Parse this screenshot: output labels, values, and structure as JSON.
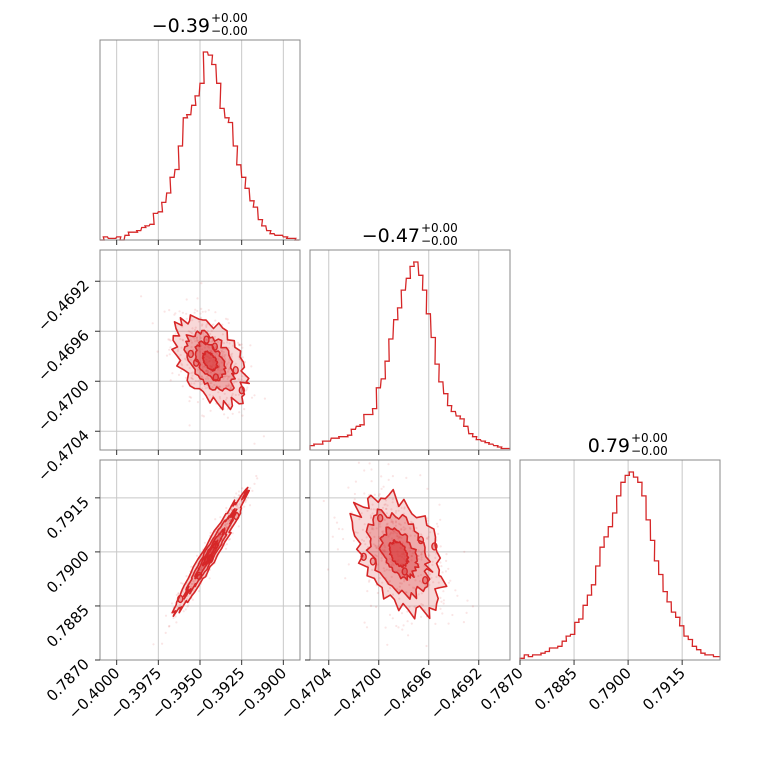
{
  "chart_data": {
    "type": "corner",
    "color": "#d62728",
    "fill_color": "#d62728",
    "parameters": [
      {
        "id": "p1",
        "label": "",
        "title": "−0.39",
        "upper": "+0.00",
        "lower": "−0.00",
        "range": [
          -0.401,
          -0.389
        ],
        "ticks": [
          -0.4,
          -0.3975,
          -0.395,
          -0.3925,
          -0.39
        ],
        "tick_labels": [
          "−0.4000",
          "−0.3975",
          "−0.3950",
          "−0.3925",
          "−0.3900"
        ],
        "mean": -0.3944,
        "std": 0.00095
      },
      {
        "id": "p2",
        "label": "",
        "title": "−0.47",
        "upper": "+0.00",
        "lower": "−0.00",
        "range": [
          -0.47055,
          -0.46895
        ],
        "ticks": [
          -0.4704,
          -0.47,
          -0.4696,
          -0.4692
        ],
        "tick_labels": [
          "−0.4704",
          "−0.4700",
          "−0.4696",
          "−0.4692"
        ],
        "mean": -0.46984,
        "std": 0.00016
      },
      {
        "id": "p3",
        "label": "",
        "title": "0.79",
        "upper": "+0.00",
        "lower": "−0.00",
        "range": [
          0.787,
          0.79255
        ],
        "ticks": [
          0.787,
          0.7885,
          0.79,
          0.7915
        ],
        "tick_labels": [
          "0.7870",
          "0.7885",
          "0.7900",
          "0.7915"
        ],
        "mean": 0.78995,
        "std": 0.00075
      }
    ],
    "correlations": [
      [
        1,
        -0.45,
        0.97
      ],
      [
        -0.45,
        1,
        -0.4
      ],
      [
        0.97,
        -0.4,
        1
      ]
    ],
    "histograms": {
      "p1": {
        "x": [
          -0.401,
          -0.4008,
          -0.4005,
          -0.4003,
          -0.4,
          -0.3998,
          -0.3995,
          -0.3993,
          -0.399,
          -0.3988,
          -0.3985,
          -0.3983,
          -0.398,
          -0.3978,
          -0.3975,
          -0.3973,
          -0.397,
          -0.3968,
          -0.3965,
          -0.3963,
          -0.396,
          -0.3958,
          -0.3955,
          -0.3953,
          -0.395,
          -0.3948,
          -0.3945,
          -0.3943,
          -0.394,
          -0.3938,
          -0.3935,
          -0.3933,
          -0.393,
          -0.3928,
          -0.3925,
          -0.3923,
          -0.392,
          -0.3918,
          -0.3915,
          -0.3913,
          -0.391,
          -0.3908,
          -0.3905,
          -0.3903,
          -0.39,
          -0.3898,
          -0.3895,
          -0.3893
        ],
        "counts": [
          0,
          2,
          1,
          1,
          2,
          0,
          3,
          5,
          5,
          6,
          8,
          9,
          10,
          17,
          18,
          24,
          30,
          40,
          45,
          60,
          78,
          80,
          86,
          92,
          100,
          120,
          118,
          112,
          100,
          84,
          78,
          75,
          60,
          48,
          40,
          33,
          25,
          21,
          13,
          9,
          6,
          4,
          3,
          3,
          2,
          1,
          1,
          0
        ]
      },
      "p2": {
        "x": [
          -0.47055,
          -0.47052,
          -0.47048,
          -0.47045,
          -0.47042,
          -0.47038,
          -0.47035,
          -0.47032,
          -0.47028,
          -0.47025,
          -0.47022,
          -0.47018,
          -0.47015,
          -0.47012,
          -0.47008,
          -0.47005,
          -0.47002,
          -0.46998,
          -0.46995,
          -0.46992,
          -0.46988,
          -0.46985,
          -0.46982,
          -0.46978,
          -0.46975,
          -0.46972,
          -0.46968,
          -0.46965,
          -0.46962,
          -0.46958,
          -0.46955,
          -0.46952,
          -0.46948,
          -0.46945,
          -0.46942,
          -0.46938,
          -0.46935,
          -0.46932,
          -0.46928,
          -0.46925,
          -0.46922,
          -0.46918,
          -0.46915,
          -0.46912,
          -0.46908,
          -0.46905,
          -0.46902,
          -0.46898
        ],
        "counts": [
          3,
          4,
          4,
          6,
          6,
          8,
          8,
          9,
          9,
          10,
          14,
          16,
          17,
          24,
          24,
          28,
          42,
          48,
          60,
          75,
          88,
          96,
          108,
          116,
          124,
          127,
          118,
          108,
          92,
          76,
          58,
          46,
          38,
          30,
          26,
          23,
          21,
          16,
          11,
          9,
          7,
          6,
          5,
          4,
          3,
          2,
          1,
          1
        ]
      },
      "p3": {
        "x": [
          0.787,
          0.78712,
          0.78723,
          0.78735,
          0.78747,
          0.78758,
          0.7877,
          0.78782,
          0.78793,
          0.78805,
          0.78817,
          0.78828,
          0.7884,
          0.78852,
          0.78863,
          0.78875,
          0.78887,
          0.78898,
          0.7891,
          0.78922,
          0.78933,
          0.78945,
          0.78957,
          0.78968,
          0.7898,
          0.78992,
          0.79003,
          0.79015,
          0.79027,
          0.79038,
          0.7905,
          0.79062,
          0.79073,
          0.79085,
          0.79097,
          0.79108,
          0.7912,
          0.79132,
          0.79143,
          0.79155,
          0.79167,
          0.79178,
          0.7919,
          0.79202,
          0.79213,
          0.79225,
          0.79237,
          0.79248
        ],
        "counts": [
          1,
          3,
          2,
          3,
          3,
          4,
          5,
          7,
          7,
          8,
          11,
          14,
          15,
          22,
          24,
          32,
          38,
          44,
          55,
          66,
          72,
          78,
          86,
          96,
          104,
          108,
          110,
          107,
          104,
          96,
          82,
          70,
          58,
          50,
          40,
          34,
          28,
          25,
          20,
          14,
          12,
          8,
          6,
          4,
          3,
          3,
          2,
          2
        ]
      }
    }
  }
}
